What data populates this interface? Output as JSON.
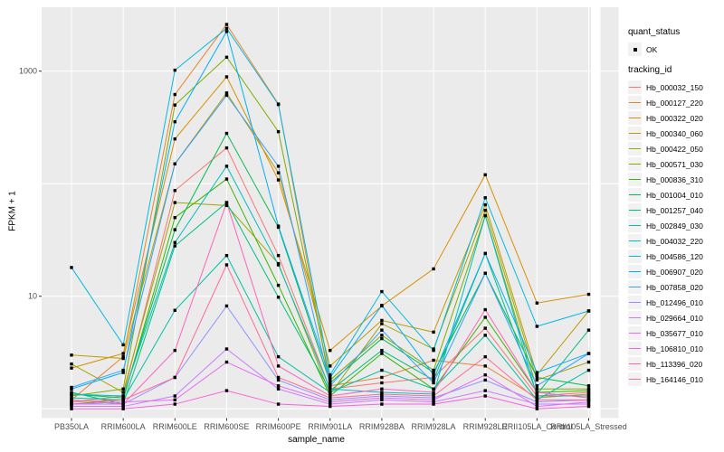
{
  "figure": {
    "background": "#FFFFFF",
    "panel_background": "#EBEBEB",
    "gridline_color": "#FFFFFF",
    "tick_color": "#333333",
    "axis_text_color": "#4D4D4D",
    "point_color": "#000000"
  },
  "legend": {
    "quant_status_title": "quant_status",
    "quant_status_items": [
      {
        "label": "OK",
        "glyph": "black-point"
      }
    ],
    "tracking_id_title": "tracking_id"
  },
  "chart_data": {
    "type": "line",
    "title": "",
    "xlabel": "sample_name",
    "ylabel": "FPKM + 1",
    "y_scale": "log10",
    "grid": true,
    "legend_position": "right",
    "y_ticks": [
      {
        "value": 1000,
        "label": "1000"
      },
      {
        "value": 10,
        "label": "10"
      }
    ],
    "y_gridline_values": [
      1,
      10,
      100,
      1000
    ],
    "ylim": [
      0.85,
      3700
    ],
    "categories": [
      "PB350LA",
      "RRIM600LA",
      "RRIM600LE",
      "RRIM600SE",
      "RRIM600PE",
      "RRIM901LA",
      "RRIM928BA",
      "RRIM928LA",
      "RRIM928LE",
      "RRII105LA_Control",
      "RRII105LA_Stressed"
    ],
    "series": [
      {
        "name": "Hb_000032_150",
        "color": "#F8766D",
        "values": [
          1.15,
          1.3,
          87,
          208,
          23,
          1.5,
          1.7,
          1.9,
          5.2,
          1.3,
          1.4
        ]
      },
      {
        "name": "Hb_000127_220",
        "color": "#EA8331",
        "values": [
          1.2,
          2.9,
          620,
          2600,
          510,
          1.6,
          1.9,
          2.7,
          2.4,
          1.25,
          1.35
        ]
      },
      {
        "name": "Hb_000322_020",
        "color": "#D89000",
        "values": [
          2.3,
          3.1,
          250,
          890,
          108,
          3.3,
          8.2,
          17.5,
          120,
          8.7,
          10.4
        ]
      },
      {
        "name": "Hb_000340_060",
        "color": "#C09B00",
        "values": [
          3.0,
          2.8,
          150,
          640,
          125,
          2.4,
          6.1,
          4.8,
          65,
          2.0,
          7.4
        ]
      },
      {
        "name": "Hb_000422_050",
        "color": "#A3A500",
        "values": [
          2.5,
          1.4,
          68,
          64,
          19.5,
          1.35,
          5.7,
          3.4,
          58,
          1.8,
          2.6
        ]
      },
      {
        "name": "Hb_000571_030",
        "color": "#7CAE00",
        "values": [
          1.3,
          1.5,
          500,
          1330,
          290,
          1.8,
          4.5,
          2.2,
          52,
          1.5,
          1.5
        ]
      },
      {
        "name": "Hb_000836_310",
        "color": "#39B600",
        "values": [
          1.1,
          1.2,
          50,
          110,
          12.5,
          1.3,
          3.1,
          1.5,
          6.5,
          1.4,
          1.45
        ]
      },
      {
        "name": "Hb_001004_010",
        "color": "#00BB4E",
        "values": [
          1.35,
          1.25,
          39,
          280,
          41,
          1.7,
          4.2,
          2.1,
          16,
          1.9,
          1.6
        ]
      },
      {
        "name": "Hb_001257_040",
        "color": "#00BF7D",
        "values": [
          1.4,
          1.1,
          28,
          68,
          9.8,
          1.45,
          3.3,
          1.8,
          24,
          1.35,
          5.0
        ]
      },
      {
        "name": "Hb_002849_030",
        "color": "#00C1A3",
        "values": [
          1.25,
          1.2,
          7.5,
          23,
          2.9,
          1.4,
          2.2,
          1.5,
          4.5,
          1.2,
          2.2
        ]
      },
      {
        "name": "Hb_004032_220",
        "color": "#00BFC4",
        "values": [
          1.35,
          1.3,
          30,
          143,
          19,
          1.5,
          1.4,
          1.35,
          52,
          1.3,
          1.3
        ]
      },
      {
        "name": "Hb_004586_120",
        "color": "#00BAE0",
        "values": [
          18,
          3.7,
          1020,
          2400,
          505,
          2.0,
          11,
          3.3,
          75,
          5.4,
          7.4
        ]
      },
      {
        "name": "Hb_006907_020",
        "color": "#00B0F6",
        "values": [
          1.5,
          2.1,
          355,
          2250,
          42,
          1.9,
          8.3,
          2.0,
          24,
          2.1,
          3.1
        ]
      },
      {
        "name": "Hb_007858_020",
        "color": "#35A2FF",
        "values": [
          1.55,
          2.2,
          150,
          610,
          143,
          1.6,
          5.0,
          1.7,
          16,
          1.6,
          3.1
        ]
      },
      {
        "name": "Hb_012496_010",
        "color": "#9590FF",
        "values": [
          1.1,
          1.1,
          1.9,
          8.2,
          1.8,
          1.2,
          1.3,
          1.25,
          1.8,
          1.15,
          1.2
        ]
      },
      {
        "name": "Hb_029664_010",
        "color": "#C77CFF",
        "values": [
          1.05,
          1.05,
          1.3,
          3.4,
          1.5,
          1.1,
          1.2,
          1.15,
          1.45,
          1.1,
          1.1
        ]
      },
      {
        "name": "Hb_035677_010",
        "color": "#E76BF3",
        "values": [
          1.1,
          1.15,
          1.2,
          2.6,
          1.6,
          1.15,
          1.25,
          1.2,
          2.0,
          1.05,
          1.15
        ]
      },
      {
        "name": "Hb_106810_010",
        "color": "#FA62DB",
        "values": [
          1.0,
          1.0,
          1.1,
          1.45,
          1.1,
          1.05,
          1.1,
          1.1,
          1.3,
          1.0,
          1.05
        ]
      },
      {
        "name": "Hb_113396_020",
        "color": "#FF62BC",
        "values": [
          1.2,
          1.1,
          3.3,
          68,
          2.4,
          1.3,
          1.5,
          1.4,
          7.6,
          1.4,
          1.25
        ]
      },
      {
        "name": "Hb_164146_010",
        "color": "#FF6A98",
        "values": [
          1.15,
          1.2,
          1.9,
          19,
          1.9,
          1.25,
          1.35,
          1.3,
          2.9,
          1.2,
          1.2
        ]
      }
    ]
  }
}
